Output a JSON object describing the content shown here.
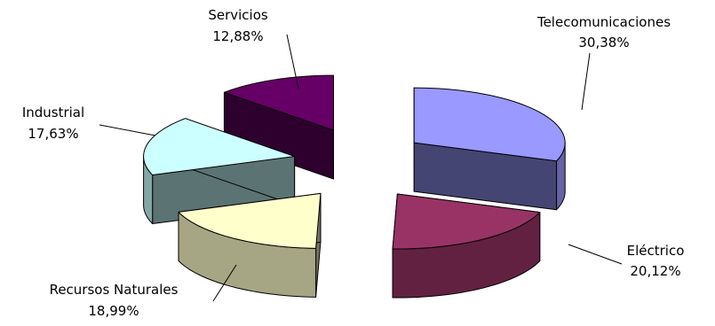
{
  "chart_data": {
    "type": "pie",
    "style": "3d-exploded",
    "title": "",
    "categories": [
      "Telecomunicaciones",
      "Eléctrico",
      "Recursos Naturales",
      "Industrial",
      "Servicios"
    ],
    "values": [
      30.38,
      20.12,
      18.99,
      17.63,
      12.88
    ],
    "value_labels": [
      "30,38%",
      "20,12%",
      "18,99%",
      "17,63%",
      "12,88%"
    ],
    "colors": [
      "#9999ff",
      "#993366",
      "#ffffcc",
      "#ccffff",
      "#660066"
    ],
    "legend": "none"
  }
}
